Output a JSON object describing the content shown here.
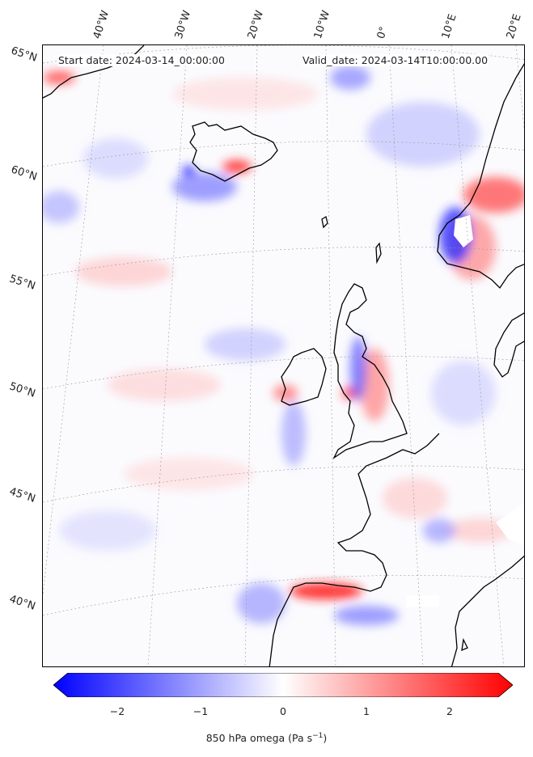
{
  "header": {
    "start_date": "Start date: 2024-03-14_00:00:00",
    "valid_date": "Valid_date: 2024-03-14T10:00:00.00"
  },
  "latitude_labels": [
    "65°N",
    "60°N",
    "55°N",
    "50°N",
    "45°N",
    "40°N"
  ],
  "longitude_labels": [
    "40°W",
    "30°W",
    "20°W",
    "10°W",
    "0°",
    "10°E",
    "20°E"
  ],
  "colorbar": {
    "label_main": "850 hPa omega (Pa s",
    "label_sup": "−1",
    "label_end": ")",
    "ticks": [
      "−2",
      "−1",
      "0",
      "1",
      "2"
    ],
    "range": [
      -2.7,
      2.7
    ],
    "colors": {
      "negative": "#0000ff",
      "neutral": "#ffffff",
      "positive": "#ff0000"
    }
  },
  "colors": {
    "coastline": "#000000",
    "gridline": "#999999"
  }
}
